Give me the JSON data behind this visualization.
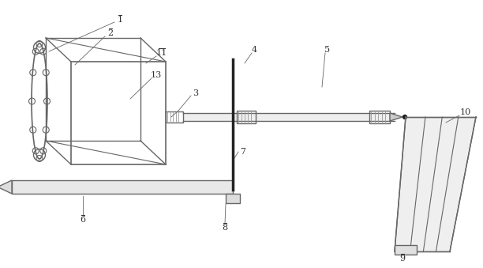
{
  "bg_color": "#ffffff",
  "line_color": "#666666",
  "light_gray": "#999999",
  "dark_line": "#222222",
  "label_color": "#333333",
  "figsize": [
    6.12,
    3.39
  ],
  "dpi": 100
}
